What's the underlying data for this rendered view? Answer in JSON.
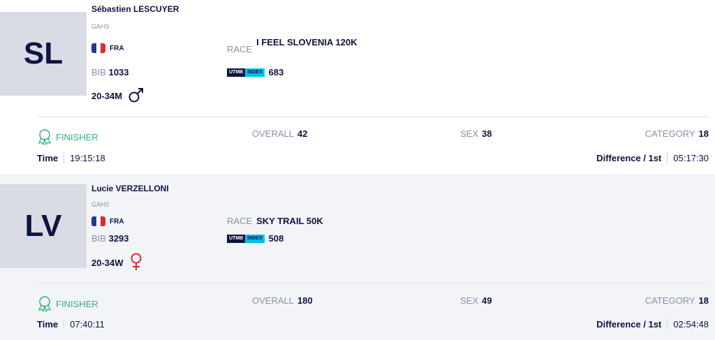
{
  "colors": {
    "accent": "#0d1440",
    "finisher": "#34b27b",
    "utmb_index": "#00bfe8"
  },
  "labels": {
    "race": "RACE",
    "bib": "BIB",
    "utmb": "UTMB",
    "index": "INDEX",
    "finisher": "FINISHER",
    "overall": "OVERALL",
    "sex": "SEX",
    "category": "CATEGORY",
    "time": "Time",
    "difference": "Difference / 1st"
  },
  "runners": [
    {
      "initials": "SL",
      "name": "Sébastien LESCUYER",
      "club": "GAHS",
      "nationality": "FRA",
      "bib": "1033",
      "category": "20-34M",
      "gender_icon": "male-icon",
      "race": "I FEEL SLOVENIA 120K",
      "utmb_index": "683",
      "status": "FINISHER",
      "overall": "42",
      "sex_rank": "38",
      "category_rank": "18",
      "time": "19:15:18",
      "difference": "05:17:30"
    },
    {
      "initials": "LV",
      "name": "Lucie VERZELLONI",
      "club": "GAHS",
      "nationality": "FRA",
      "bib": "3293",
      "category": "20-34W",
      "gender_icon": "female-icon",
      "race": "SKY TRAIL 50K",
      "utmb_index": "508",
      "status": "FINISHER",
      "overall": "180",
      "sex_rank": "49",
      "category_rank": "18",
      "time": "07:40:11",
      "difference": "02:54:48"
    }
  ]
}
